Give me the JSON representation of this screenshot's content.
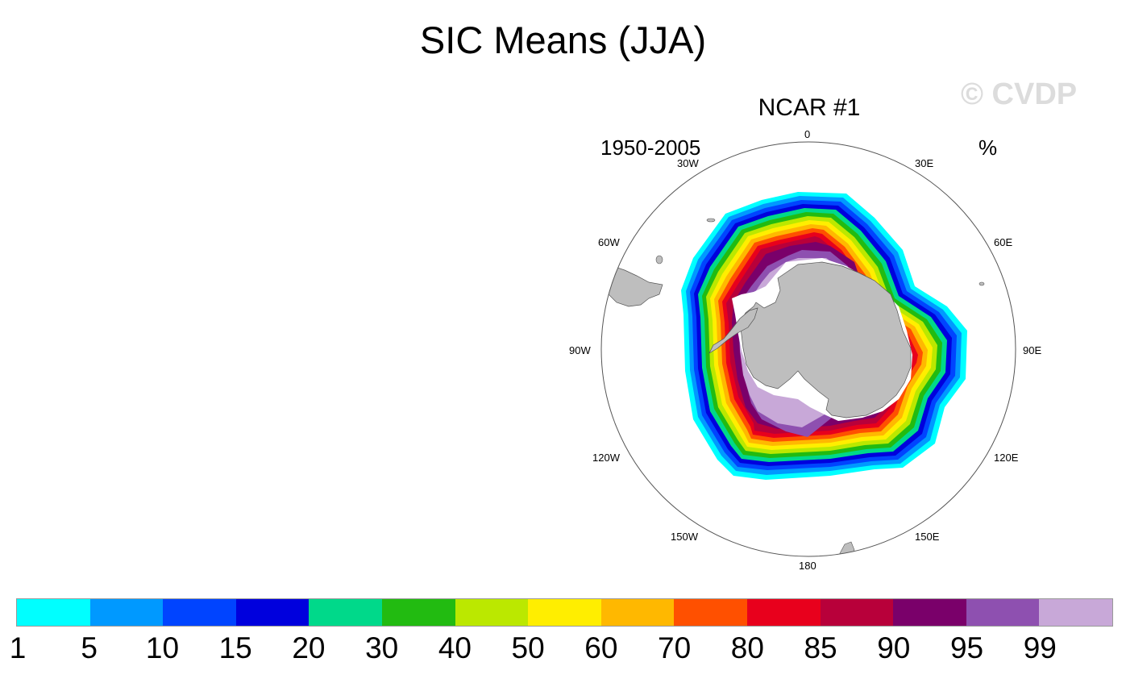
{
  "title": "SIC Means (JJA)",
  "watermark": "© CVDP",
  "panel": {
    "title": "NCAR #1",
    "left_string": "1950-2005",
    "right_string": "%"
  },
  "longitude_labels": {
    "n": "0",
    "ne30": "30E",
    "ne60": "60E",
    "e90": "90E",
    "se120": "120E",
    "se150": "150E",
    "s": "180",
    "sw150": "150W",
    "sw120": "120W",
    "w90": "90W",
    "nw60": "60W",
    "nw30": "30W"
  },
  "colorbar": {
    "labels": [
      "1",
      "5",
      "10",
      "15",
      "20",
      "30",
      "40",
      "50",
      "60",
      "70",
      "80",
      "85",
      "90",
      "95",
      "99"
    ],
    "colors": [
      "#00ffff",
      "#0099ff",
      "#0044ff",
      "#0000dd",
      "#00d98a",
      "#22bb11",
      "#bbe800",
      "#ffee00",
      "#ffb800",
      "#ff5000",
      "#e8001c",
      "#b8003a",
      "#7a006a",
      "#8e50b0",
      "#c8a8d8"
    ]
  },
  "colors": {
    "land": "#bebebe",
    "ice_shelf": "#ffffff",
    "watermark": "#dcdcdc"
  }
}
